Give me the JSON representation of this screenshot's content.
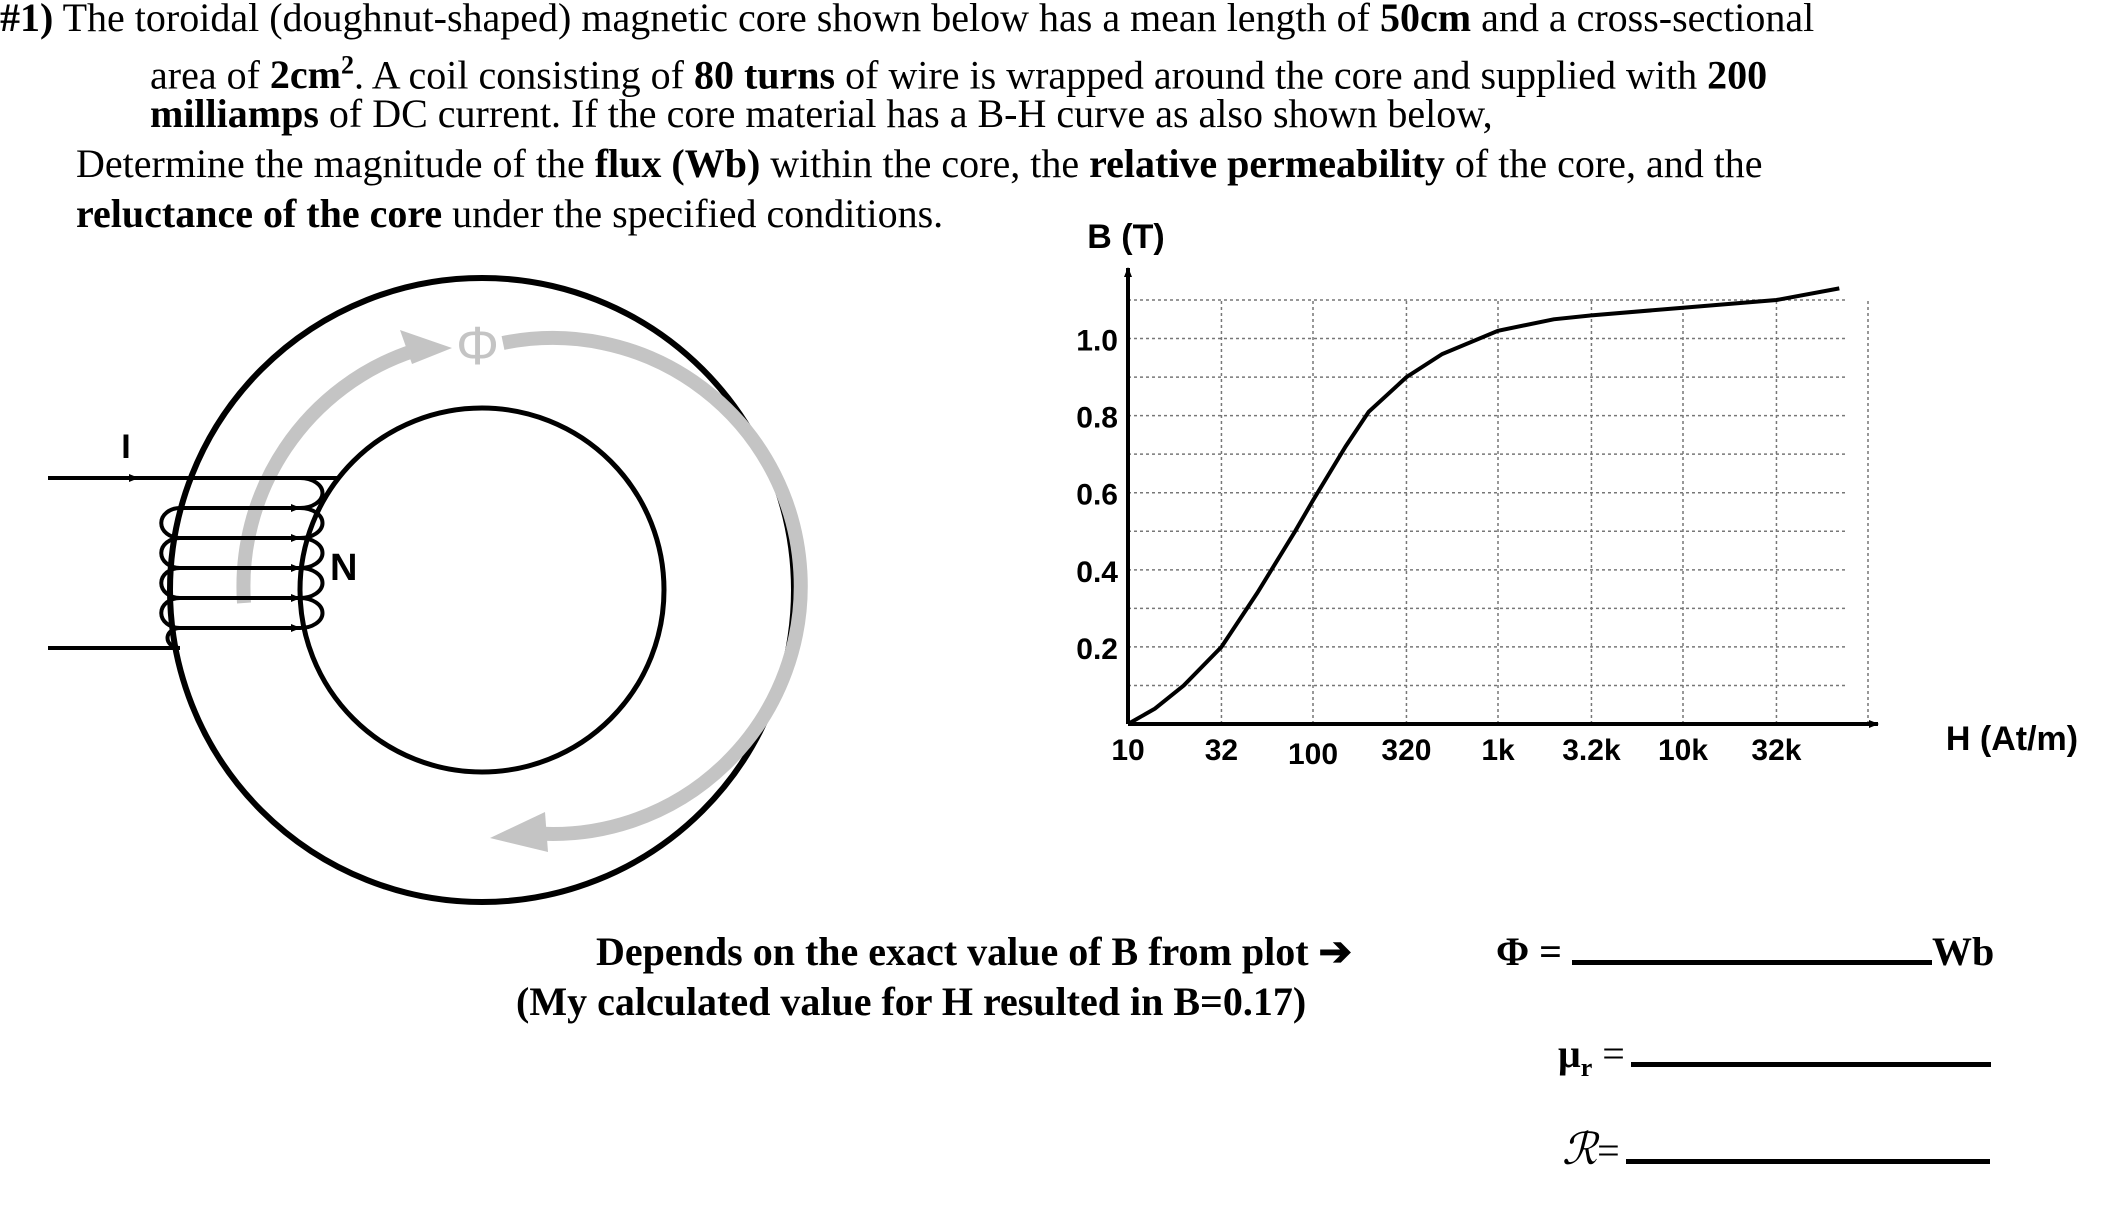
{
  "problem": {
    "line1": {
      "a": "#1)",
      "b": " The toroidal (doughnut-shaped) magnetic core shown below has a mean length of ",
      "c": "50cm",
      "d": " and a cross-sectional"
    },
    "line2": {
      "a": "area of ",
      "b": "2cm",
      "b_sup": "2",
      "c": ".  A coil consisting of ",
      "d": "80 turns",
      "e": " of wire is wrapped around the core and supplied with ",
      "f": "200"
    },
    "line3": {
      "a": "milliamps",
      "b": " of DC current.  If the core material has a B-H curve as also shown below,"
    },
    "line4": {
      "a": "Determine the magnitude of the ",
      "b": "flux (Wb)",
      "c": " within the core, the ",
      "d": "relative permeability",
      "e": " of the core, and the"
    },
    "line5": {
      "a": "reluctance of the core",
      "b": " under the specified conditions."
    }
  },
  "toroid": {
    "flux_symbol": "Φ",
    "current_label": "I",
    "turns_label": "N"
  },
  "chart_data": {
    "type": "line",
    "title": "",
    "ylabel": "B (T)",
    "xlabel": "H (At/m)",
    "x_scale": "log",
    "xlim": [
      10,
      100000
    ],
    "ylim": [
      0,
      1.1
    ],
    "x_ticks": [
      "10",
      "32",
      "100",
      "320",
      "1k",
      "3.2k",
      "10k",
      "32k"
    ],
    "y_ticks": [
      "1.0",
      "0.8",
      "0.6",
      "0.4",
      "0.2"
    ],
    "grid": true,
    "series": [
      {
        "x": [
          10,
          14,
          20,
          32,
          50,
          80,
          100,
          150,
          200,
          320,
          500,
          1000,
          2000,
          3200,
          10000,
          32000,
          70000
        ],
        "y": [
          0.0,
          0.04,
          0.1,
          0.2,
          0.34,
          0.5,
          0.58,
          0.72,
          0.81,
          0.9,
          0.96,
          1.02,
          1.05,
          1.06,
          1.08,
          1.1,
          1.13
        ]
      }
    ]
  },
  "notes": {
    "line1": "Depends on the exact value of B from plot ➔",
    "line2": "(My calculated value for H resulted in B=0.17)"
  },
  "answers": {
    "flux_label": "Φ =",
    "flux_unit": "Wb",
    "mu_label": "μ",
    "mu_sub": "r",
    "mu_eq": " =",
    "rel_label": "ℛ",
    "rel_eq": "="
  }
}
